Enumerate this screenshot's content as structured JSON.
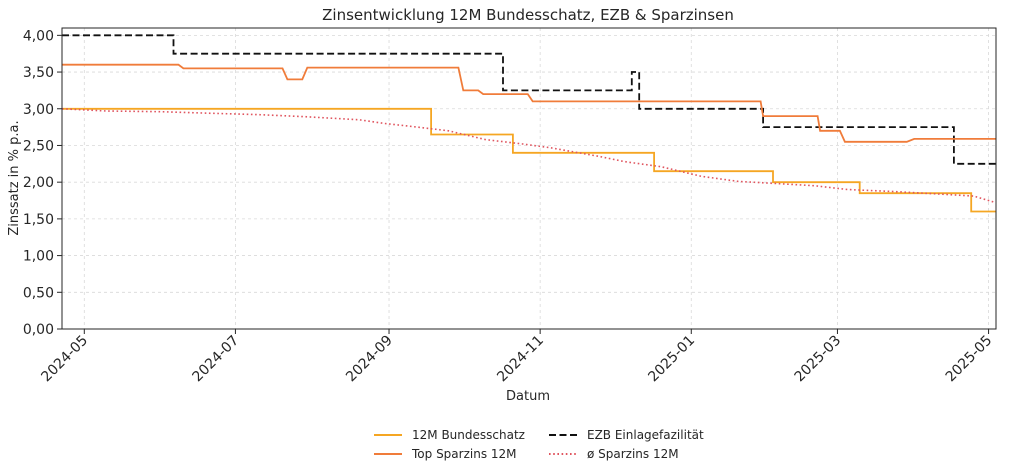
{
  "chart_data": {
    "type": "line",
    "title": "Zinsentwicklung 12M Bundesschatz, EZB & Sparzinsen",
    "xlabel": "Datum",
    "ylabel": "Zinssatz in % p.a.",
    "ylim": [
      0,
      4.1
    ],
    "xlim": [
      "2024-04-22",
      "2025-05-04"
    ],
    "grid": true,
    "legend_position": "bottom-center",
    "x_ticks": [
      {
        "date": "2024-05-01",
        "label": "2024-05"
      },
      {
        "date": "2024-07-01",
        "label": "2024-07"
      },
      {
        "date": "2024-09-01",
        "label": "2024-09"
      },
      {
        "date": "2024-11-01",
        "label": "2024-11"
      },
      {
        "date": "2025-01-01",
        "label": "2025-01"
      },
      {
        "date": "2025-03-01",
        "label": "2025-03"
      },
      {
        "date": "2025-05-01",
        "label": "2025-05"
      }
    ],
    "y_ticks": [
      {
        "value": 0,
        "label": "0,00"
      },
      {
        "value": 0.5,
        "label": "0,50"
      },
      {
        "value": 1.0,
        "label": "1,00"
      },
      {
        "value": 1.5,
        "label": "1,50"
      },
      {
        "value": 2.0,
        "label": "2,00"
      },
      {
        "value": 2.5,
        "label": "2,50"
      },
      {
        "value": 3.0,
        "label": "3,00"
      },
      {
        "value": 3.5,
        "label": "3,50"
      },
      {
        "value": 4.0,
        "label": "4,00"
      }
    ],
    "series": [
      {
        "name": "12M Bundesschatz",
        "color": "#f5a623",
        "style": "solid",
        "points": [
          [
            "2024-04-22",
            3.0
          ],
          [
            "2024-09-18",
            3.0
          ],
          [
            "2024-09-18",
            2.65
          ],
          [
            "2024-10-21",
            2.65
          ],
          [
            "2024-10-21",
            2.4
          ],
          [
            "2024-12-17",
            2.4
          ],
          [
            "2024-12-17",
            2.15
          ],
          [
            "2025-02-03",
            2.15
          ],
          [
            "2025-02-03",
            2.0
          ],
          [
            "2025-03-10",
            2.0
          ],
          [
            "2025-03-10",
            1.85
          ],
          [
            "2025-04-24",
            1.85
          ],
          [
            "2025-04-24",
            1.6
          ],
          [
            "2025-05-04",
            1.6
          ]
        ]
      },
      {
        "name": "EZB Einlagefazilität",
        "color": "#111111",
        "style": "dashed",
        "points": [
          [
            "2024-04-22",
            4.0
          ],
          [
            "2024-06-06",
            4.0
          ],
          [
            "2024-06-06",
            3.75
          ],
          [
            "2024-10-17",
            3.75
          ],
          [
            "2024-10-17",
            3.25
          ],
          [
            "2024-12-08",
            3.25
          ],
          [
            "2024-12-08",
            3.5
          ],
          [
            "2024-12-11",
            3.5
          ],
          [
            "2024-12-11",
            3.0
          ],
          [
            "2025-01-30",
            3.0
          ],
          [
            "2025-01-30",
            2.75
          ],
          [
            "2025-04-17",
            2.75
          ],
          [
            "2025-04-17",
            2.25
          ],
          [
            "2025-05-04",
            2.25
          ]
        ]
      },
      {
        "name": "Top Sparzins 12M",
        "color": "#f07c3a",
        "style": "solid",
        "points": [
          [
            "2024-04-22",
            3.6
          ],
          [
            "2024-06-08",
            3.6
          ],
          [
            "2024-06-10",
            3.55
          ],
          [
            "2024-07-20",
            3.55
          ],
          [
            "2024-07-22",
            3.4
          ],
          [
            "2024-07-28",
            3.4
          ],
          [
            "2024-07-30",
            3.56
          ],
          [
            "2024-09-29",
            3.56
          ],
          [
            "2024-10-01",
            3.25
          ],
          [
            "2024-10-07",
            3.25
          ],
          [
            "2024-10-09",
            3.2
          ],
          [
            "2024-10-27",
            3.2
          ],
          [
            "2024-10-29",
            3.1
          ],
          [
            "2025-01-29",
            3.1
          ],
          [
            "2025-01-30",
            2.9
          ],
          [
            "2025-02-21",
            2.9
          ],
          [
            "2025-02-22",
            2.7
          ],
          [
            "2025-03-02",
            2.7
          ],
          [
            "2025-03-04",
            2.55
          ],
          [
            "2025-03-29",
            2.55
          ],
          [
            "2025-04-01",
            2.59
          ],
          [
            "2025-05-04",
            2.59
          ]
        ]
      },
      {
        "name": "ø Sparzins 12M",
        "color": "#e0555f",
        "style": "dotted",
        "points": [
          [
            "2024-04-22",
            3.0
          ],
          [
            "2024-05-10",
            2.97
          ],
          [
            "2024-06-01",
            2.96
          ],
          [
            "2024-06-20",
            2.94
          ],
          [
            "2024-07-10",
            2.92
          ],
          [
            "2024-07-30",
            2.89
          ],
          [
            "2024-08-20",
            2.85
          ],
          [
            "2024-08-30",
            2.8
          ],
          [
            "2024-09-10",
            2.76
          ],
          [
            "2024-09-25",
            2.7
          ],
          [
            "2024-10-10",
            2.58
          ],
          [
            "2024-10-25",
            2.52
          ],
          [
            "2024-11-05",
            2.47
          ],
          [
            "2024-11-25",
            2.35
          ],
          [
            "2024-12-05",
            2.28
          ],
          [
            "2024-12-20",
            2.21
          ],
          [
            "2025-01-05",
            2.08
          ],
          [
            "2025-01-20",
            2.01
          ],
          [
            "2025-02-05",
            1.98
          ],
          [
            "2025-02-20",
            1.95
          ],
          [
            "2025-03-05",
            1.9
          ],
          [
            "2025-03-25",
            1.87
          ],
          [
            "2025-04-10",
            1.84
          ],
          [
            "2025-04-25",
            1.81
          ],
          [
            "2025-05-04",
            1.72
          ]
        ]
      }
    ]
  }
}
